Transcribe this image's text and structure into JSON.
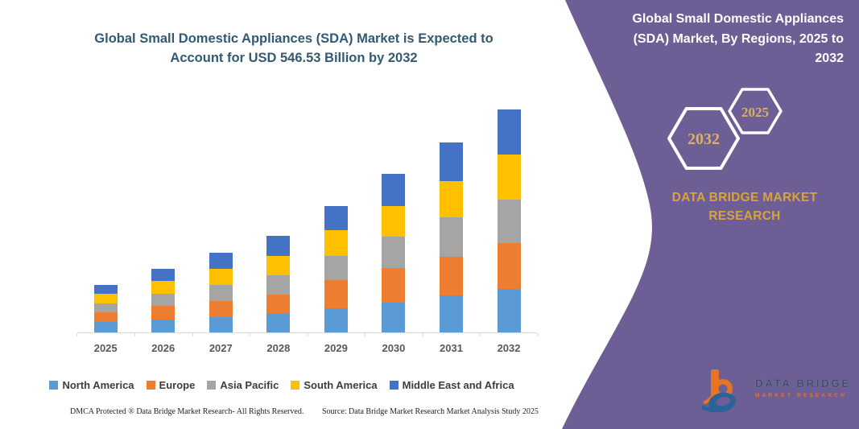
{
  "colors": {
    "purple": "#6d5f96",
    "title_blue": "#335a75",
    "gold": "#d9a33c",
    "hex_gold": "#d8b069",
    "white": "#ffffff",
    "logo_orange": "#e87424",
    "logo_blue": "#2a6399",
    "logo_navy": "#3e4e6b"
  },
  "chart_data": {
    "type": "bar",
    "subtype": "stacked-vertical",
    "title": "Global Small Domestic Appliances (SDA) Market is Expected to Account for USD 546.53 Billion by 2032",
    "title_lines": [
      "Global Small Domestic Appliances (SDA) Market is Expected to",
      "Account for USD 546.53 Billion by 2032"
    ],
    "unit": "USD Billion",
    "categories": [
      "2025",
      "2026",
      "2027",
      "2028",
      "2029",
      "2030",
      "2031",
      "2032"
    ],
    "series": [
      {
        "name": "North America",
        "color": "#5b9bd5",
        "values": [
          28.1,
          32.8,
          40.2,
          47.2,
          61.5,
          74.1,
          92.3,
          108.9
        ]
      },
      {
        "name": "Europe",
        "color": "#ed7d31",
        "values": [
          23.0,
          34.8,
          39.5,
          47.2,
          67.6,
          85.9,
          93.7,
          111.2
        ]
      },
      {
        "name": "Asia Pacific",
        "color": "#a5a5a5",
        "values": [
          20.8,
          28.1,
          38.6,
          46.6,
          58.9,
          76.6,
          96.3,
          106.9
        ]
      },
      {
        "name": "South America",
        "color": "#ffc000",
        "values": [
          23.6,
          32.2,
          39.6,
          48.3,
          63.5,
          73.9,
          89.8,
          110.0
        ]
      },
      {
        "name": "Middle East and Africa",
        "color": "#4472c4",
        "values": [
          23.0,
          30.1,
          39.4,
          47.9,
          58.9,
          78.0,
          94.3,
          109.5
        ]
      }
    ],
    "ylim": [
      0,
      560
    ],
    "grid": false,
    "legend_position": "bottom",
    "annotation": "2032 total = USD 546.53 Billion"
  },
  "footer": {
    "dmca": "DMCA Protected ® Data Bridge Market Research-  All Rights Reserved.",
    "source": "Source: Data Bridge Market Research  Market Analysis Study 2025"
  },
  "right_panel": {
    "title": "Global Small Domestic Appliances (SDA) Market, By Regions, 2025 to 2032",
    "hexagon_back_year": "2032",
    "hexagon_front_year": "2025",
    "brand_name": "DATA BRIDGE MARKET RESEARCH",
    "logo": {
      "wordmark": "DATA BRIDGE",
      "tagline": "MARKET RESEARCH"
    }
  }
}
